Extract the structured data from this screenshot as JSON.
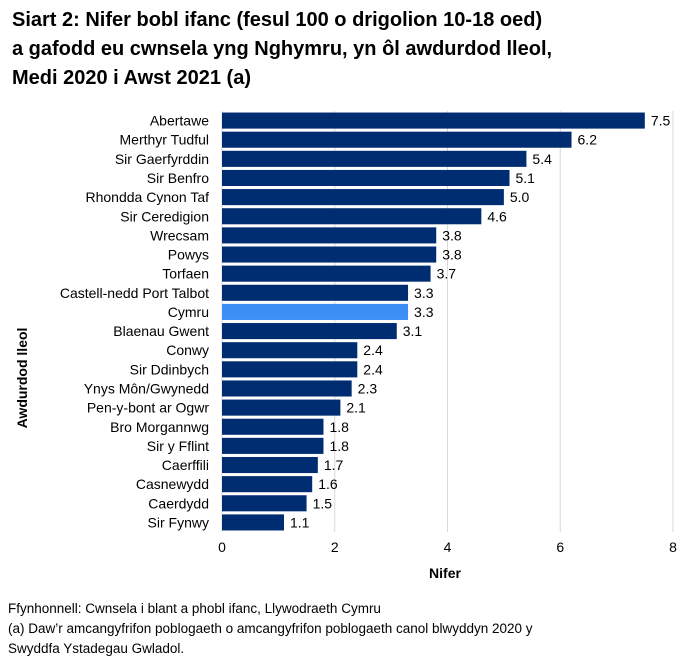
{
  "chart_data": {
    "type": "bar",
    "orientation": "horizontal",
    "title_lines": [
      "Siart 2: Nifer bobl ifanc (fesul 100 o drigolion 10-18 oed)",
      "a gafodd eu cwnsela yng Nghymru, yn ôl awdurdod lleol,",
      "Medi 2020 i Awst 2021 (a)"
    ],
    "xlabel": "Nifer",
    "ylabel": "Awdurdod lleol",
    "xlim": [
      0,
      8
    ],
    "xticks": [
      "0",
      "2",
      "4",
      "6",
      "8"
    ],
    "grid": true,
    "legend": "none",
    "categories": [
      "Abertawe",
      "Merthyr Tudful",
      "Sir Gaerfyrddin",
      "Sir Benfro",
      "Rhondda Cynon Taf",
      "Sir Ceredigion",
      "Wrecsam",
      "Powys",
      "Torfaen",
      "Castell-nedd Port Talbot",
      "Cymru",
      "Blaenau Gwent",
      "Conwy",
      "Sir Ddinbych",
      "Ynys Môn/Gwynedd",
      "Pen-y-bont ar Ogwr",
      "Bro Morgannwg",
      "Sir y Fflint",
      "Caerffili",
      "Casnewydd",
      "Caerdydd",
      "Sir Fynwy"
    ],
    "values": [
      7.5,
      6.2,
      5.4,
      5.1,
      5.0,
      4.6,
      3.8,
      3.8,
      3.7,
      3.3,
      3.3,
      3.1,
      2.4,
      2.4,
      2.3,
      2.1,
      1.8,
      1.8,
      1.7,
      1.6,
      1.5,
      1.1
    ],
    "value_labels": [
      "7.5",
      "6.2",
      "5.4",
      "5.1",
      "5.0",
      "4.6",
      "3.8",
      "3.8",
      "3.7",
      "3.3",
      "3.3",
      "3.1",
      "2.4",
      "2.4",
      "2.3",
      "2.1",
      "1.8",
      "1.8",
      "1.7",
      "1.6",
      "1.5",
      "1.1"
    ],
    "highlight_category": "Cymru",
    "colors": {
      "bar": "#002d72",
      "highlight": "#3d8ef5",
      "grid": "#d9d9d9"
    }
  },
  "footer": {
    "source": "Ffynhonnell: Cwnsela i blant a phobl ifanc, Llywodraeth Cymru",
    "note_line1": "(a) Daw’r amcangyfrifon poblogaeth o amcangyfrifon poblogaeth canol blwyddyn 2020 y",
    "note_line2": "Swyddfa Ystadegau Gwladol."
  }
}
